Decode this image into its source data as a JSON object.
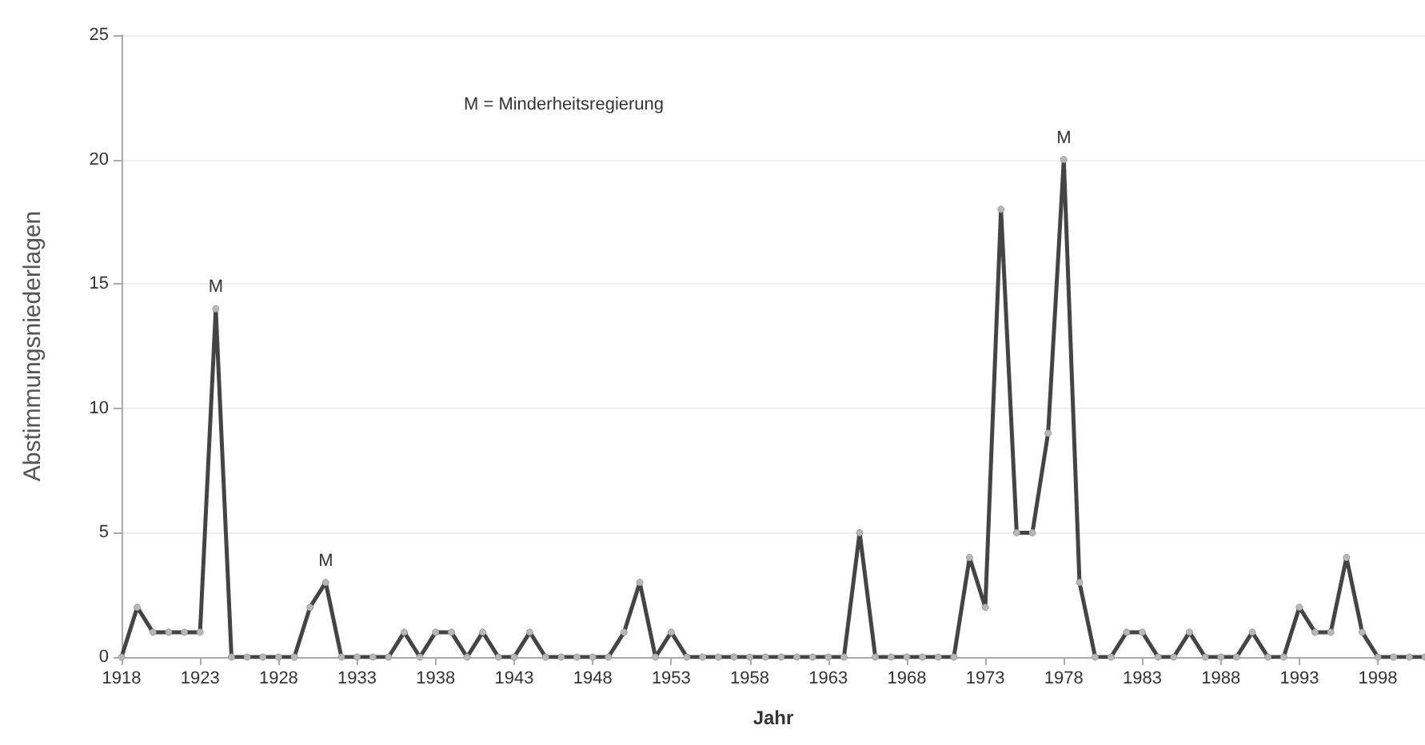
{
  "chart_data": {
    "type": "line",
    "xlabel": "Jahr",
    "ylabel": "Abstimmungsniederlagen",
    "x": [
      1918,
      1919,
      1920,
      1921,
      1922,
      1923,
      1924,
      1925,
      1926,
      1927,
      1928,
      1929,
      1930,
      1931,
      1932,
      1933,
      1934,
      1935,
      1936,
      1937,
      1938,
      1939,
      1940,
      1941,
      1942,
      1943,
      1944,
      1945,
      1946,
      1947,
      1948,
      1949,
      1950,
      1951,
      1952,
      1953,
      1954,
      1955,
      1956,
      1957,
      1958,
      1959,
      1960,
      1961,
      1962,
      1963,
      1964,
      1965,
      1966,
      1967,
      1968,
      1969,
      1970,
      1971,
      1972,
      1973,
      1974,
      1975,
      1976,
      1977,
      1978,
      1979,
      1980,
      1981,
      1982,
      1983,
      1984,
      1985,
      1986,
      1987,
      1988,
      1989,
      1990,
      1991,
      1992,
      1993,
      1994,
      1995,
      1996,
      1997,
      1998,
      1999,
      2000,
      2001
    ],
    "series": [
      {
        "color": "#444444",
        "values": [
          0,
          2,
          1,
          1,
          1,
          1,
          14,
          0,
          0,
          0,
          0,
          0,
          2,
          3,
          0,
          0,
          0,
          0,
          1,
          0,
          1,
          1,
          0,
          1,
          0,
          0,
          1,
          0,
          0,
          0,
          0,
          0,
          1,
          3,
          0,
          1,
          0,
          0,
          0,
          0,
          0,
          0,
          0,
          0,
          0,
          0,
          0,
          5,
          0,
          0,
          0,
          0,
          0,
          0,
          4,
          2,
          18,
          5,
          5,
          9,
          20,
          3,
          0,
          0,
          1,
          1,
          0,
          0,
          1,
          0,
          0,
          0,
          1,
          0,
          0,
          2,
          1,
          1,
          4,
          1,
          0,
          0,
          0,
          0
        ]
      }
    ],
    "xlim": [
      1918,
      2001
    ],
    "xticks": [
      1918,
      1923,
      1928,
      1933,
      1938,
      1943,
      1948,
      1953,
      1958,
      1963,
      1968,
      1973,
      1978,
      1983,
      1988,
      1993,
      1998
    ],
    "ylim": [
      0,
      25
    ],
    "yticks": [
      0,
      5,
      10,
      15,
      20,
      25
    ],
    "grid": "y",
    "marker": "circle",
    "line_style": "solid",
    "annotations": [
      "M = Minderheitsregierung",
      {
        "text": "M",
        "x": 1924,
        "y": 14
      },
      {
        "text": "M",
        "x": 1931,
        "y": 3
      },
      {
        "text": "M",
        "x": 1978,
        "y": 20
      }
    ]
  }
}
